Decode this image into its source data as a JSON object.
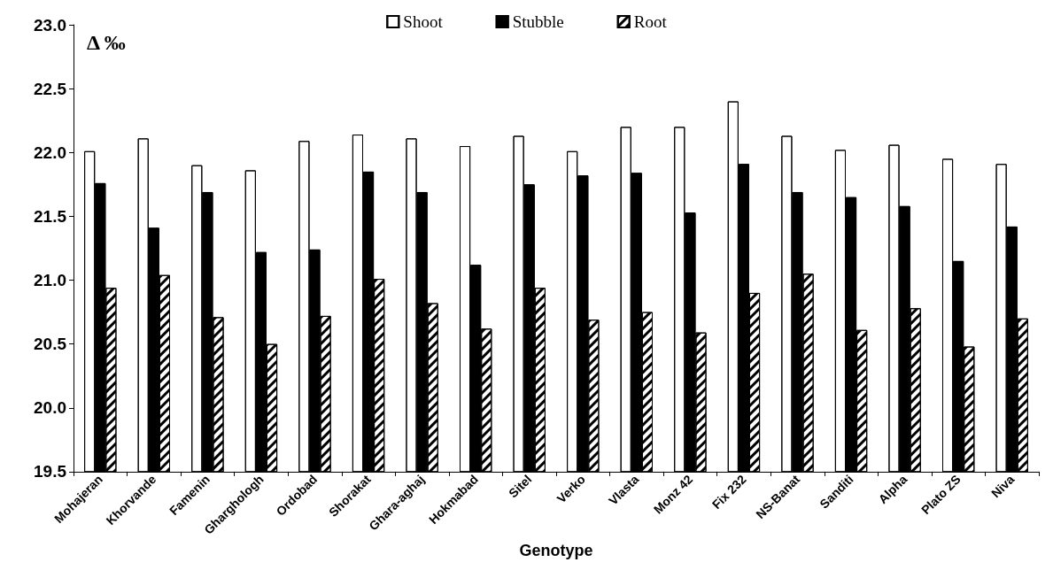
{
  "chart_data": {
    "type": "bar",
    "ylabel": "Δ ‰",
    "xlabel": "Genotype",
    "categories": [
      "Mohajeran",
      "Khorvande",
      "Famenin",
      "Gharghologh",
      "Ordobad",
      "Shorakat",
      "Ghara-aghaj",
      "Hokmabad",
      "Sitel",
      "Verko",
      "Vlasta",
      "Monz 42",
      "Fix 232",
      "NS-Banat",
      "Sanditi",
      "Alpha",
      "Plato ZS",
      "Niva"
    ],
    "series": [
      {
        "name": "Shoot",
        "color": "#ffffff",
        "values": [
          22.01,
          22.11,
          21.9,
          21.86,
          22.09,
          22.14,
          22.11,
          22.05,
          22.13,
          22.01,
          22.2,
          22.2,
          22.4,
          22.13,
          22.02,
          22.06,
          21.95,
          21.91
        ]
      },
      {
        "name": "Stubble",
        "color": "#000000",
        "values": [
          21.76,
          21.41,
          21.69,
          21.22,
          21.24,
          21.85,
          21.69,
          21.12,
          21.75,
          21.82,
          21.84,
          21.53,
          21.91,
          21.69,
          21.65,
          21.58,
          21.15,
          21.42
        ]
      },
      {
        "name": "Root",
        "color": "#ffffff",
        "values": [
          20.94,
          21.04,
          20.71,
          20.5,
          20.72,
          21.01,
          20.82,
          20.62,
          20.94,
          20.69,
          20.75,
          20.59,
          20.9,
          21.05,
          20.61,
          20.78,
          20.48,
          20.7
        ]
      }
    ],
    "ylim": [
      19.5,
      23.0
    ],
    "yticks": [
      19.5,
      {
        "value": 20,
        "label": "20.0"
      },
      20.5,
      {
        "value": 21,
        "label": "21.0"
      },
      21.5,
      {
        "value": 22,
        "label": "22.0"
      },
      22.5,
      {
        "value": 23,
        "label": "23.0"
      }
    ],
    "grid": false,
    "legend": "top"
  }
}
